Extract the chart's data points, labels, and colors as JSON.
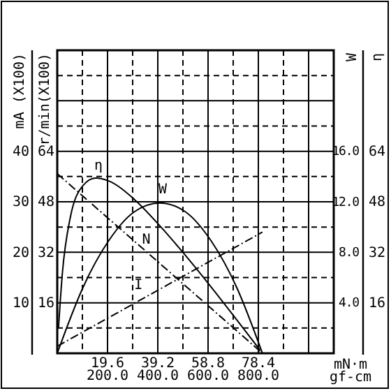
{
  "chart_data": {
    "type": "line",
    "xlabel": "mN·m",
    "x2label": "gf-cm",
    "ylabel": "mA (X100)",
    "y2label": "r/min(X100)",
    "y3label": "W",
    "annotations": [
      "η",
      "16",
      "32",
      "48",
      "64"
    ],
    "xlim": [
      0,
      107.8
    ],
    "xticks": [
      19.6,
      39.2,
      58.8,
      78.4
    ],
    "x2lim": [
      0,
      1100
    ],
    "x2ticks": [
      {
        "value": 200,
        "label": "200.0"
      },
      {
        "value": 400,
        "label": "400.0"
      },
      {
        "value": 600,
        "label": "600.0"
      },
      {
        "value": 800,
        "label": "800.0"
      }
    ],
    "ylim": [
      0,
      60
    ],
    "yticks": [
      10,
      20,
      30,
      40
    ],
    "y2lim": [
      0,
      96
    ],
    "y2ticks": [
      16,
      32,
      48,
      64
    ],
    "y3lim": [
      0,
      24
    ],
    "y3ticks": [
      {
        "value": 4,
        "label": "4.0"
      },
      {
        "value": 8,
        "label": "8.0"
      },
      {
        "value": 12,
        "label": "12.0"
      },
      {
        "value": 16,
        "label": "16.0"
      }
    ],
    "grid": true,
    "marker": "none",
    "series": [
      {
        "name": "η",
        "color": "#000000",
        "axis": "y2",
        "line_style": "solid",
        "x": [
          0.5,
          2,
          5,
          10,
          15,
          20,
          30,
          40,
          50,
          60,
          70,
          79
        ],
        "values": [
          8.2,
          25.4,
          42.7,
          53.1,
          55.5,
          54.6,
          48.8,
          40.4,
          31.0,
          21.0,
          10.6,
          1.1
        ]
      },
      {
        "name": "W",
        "color": "#000000",
        "axis": "y3",
        "line_style": "solid",
        "x": [
          0,
          10,
          20,
          30,
          40,
          50,
          60,
          70,
          80
        ],
        "values": [
          0,
          5.2,
          8.9,
          11.2,
          11.9,
          11.2,
          8.9,
          5.2,
          0
        ]
      },
      {
        "name": "N",
        "color": "#000000",
        "axis": "y2",
        "line_style": "dashed",
        "x": [
          0,
          80
        ],
        "values": [
          56.9,
          0
        ]
      },
      {
        "name": "I",
        "color": "#000000",
        "axis": "y",
        "line_style": "dashed",
        "x": [
          0,
          80
        ],
        "values": [
          1.4,
          24
        ]
      }
    ]
  }
}
